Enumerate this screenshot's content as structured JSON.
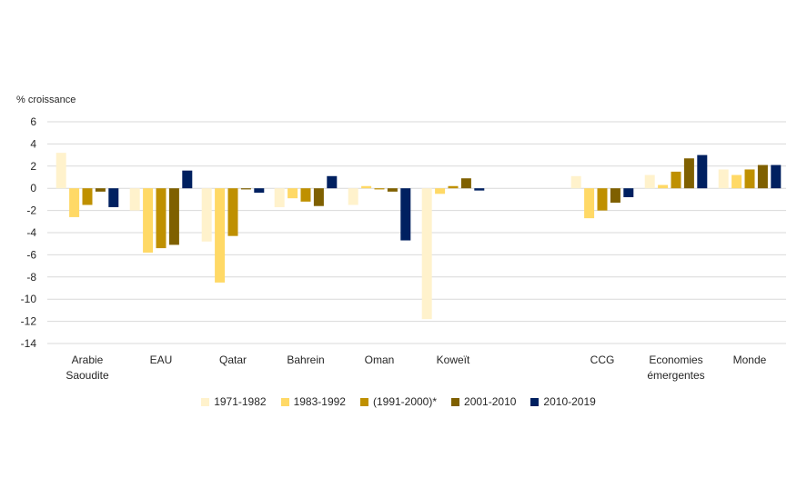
{
  "chart_data": {
    "type": "bar",
    "title": "",
    "ylabel": "% croissance",
    "xlabel": "",
    "ylim": [
      -14,
      6
    ],
    "yticks": [
      6,
      4,
      2,
      0,
      -2,
      -4,
      -6,
      -8,
      -10,
      -12,
      -14
    ],
    "grid": true,
    "legend_position": "bottom",
    "categories": [
      "Arabie Saoudite",
      "EAU",
      "Qatar",
      "Bahrein",
      "Oman",
      "Koweït",
      "CCG",
      "Economies émergentes",
      "Monde"
    ],
    "category_lines": [
      [
        "Arabie",
        "Saoudite"
      ],
      [
        "EAU"
      ],
      [
        "Qatar"
      ],
      [
        "Bahrein"
      ],
      [
        "Oman"
      ],
      [
        "Koweït"
      ],
      [
        "CCG"
      ],
      [
        "Economies",
        "émergentes"
      ],
      [
        "Monde"
      ]
    ],
    "series": [
      {
        "name": "1971-1982",
        "color": "#FFF2CC",
        "values": [
          3.2,
          -2.0,
          -4.8,
          -1.7,
          -1.5,
          -11.8,
          1.1,
          1.2,
          1.7
        ]
      },
      {
        "name": "1983-1992",
        "color": "#FFD966",
        "values": [
          -2.6,
          -5.8,
          -8.5,
          -0.9,
          0.2,
          -0.5,
          -2.7,
          0.3,
          1.2
        ]
      },
      {
        "name": "(1991-2000)*",
        "color": "#BF9000",
        "values": [
          -1.5,
          -5.4,
          -4.3,
          -1.2,
          -0.1,
          0.2,
          -2.0,
          1.5,
          1.7
        ]
      },
      {
        "name": "2001-2010",
        "color": "#7F6000",
        "values": [
          -0.3,
          -5.1,
          -0.1,
          -1.6,
          -0.3,
          0.9,
          -1.3,
          2.7,
          2.1
        ]
      },
      {
        "name": "2010-2019",
        "color": "#002060",
        "values": [
          -1.7,
          1.6,
          -0.4,
          1.1,
          -4.7,
          -0.2,
          -0.8,
          3.0,
          2.1
        ]
      }
    ]
  }
}
